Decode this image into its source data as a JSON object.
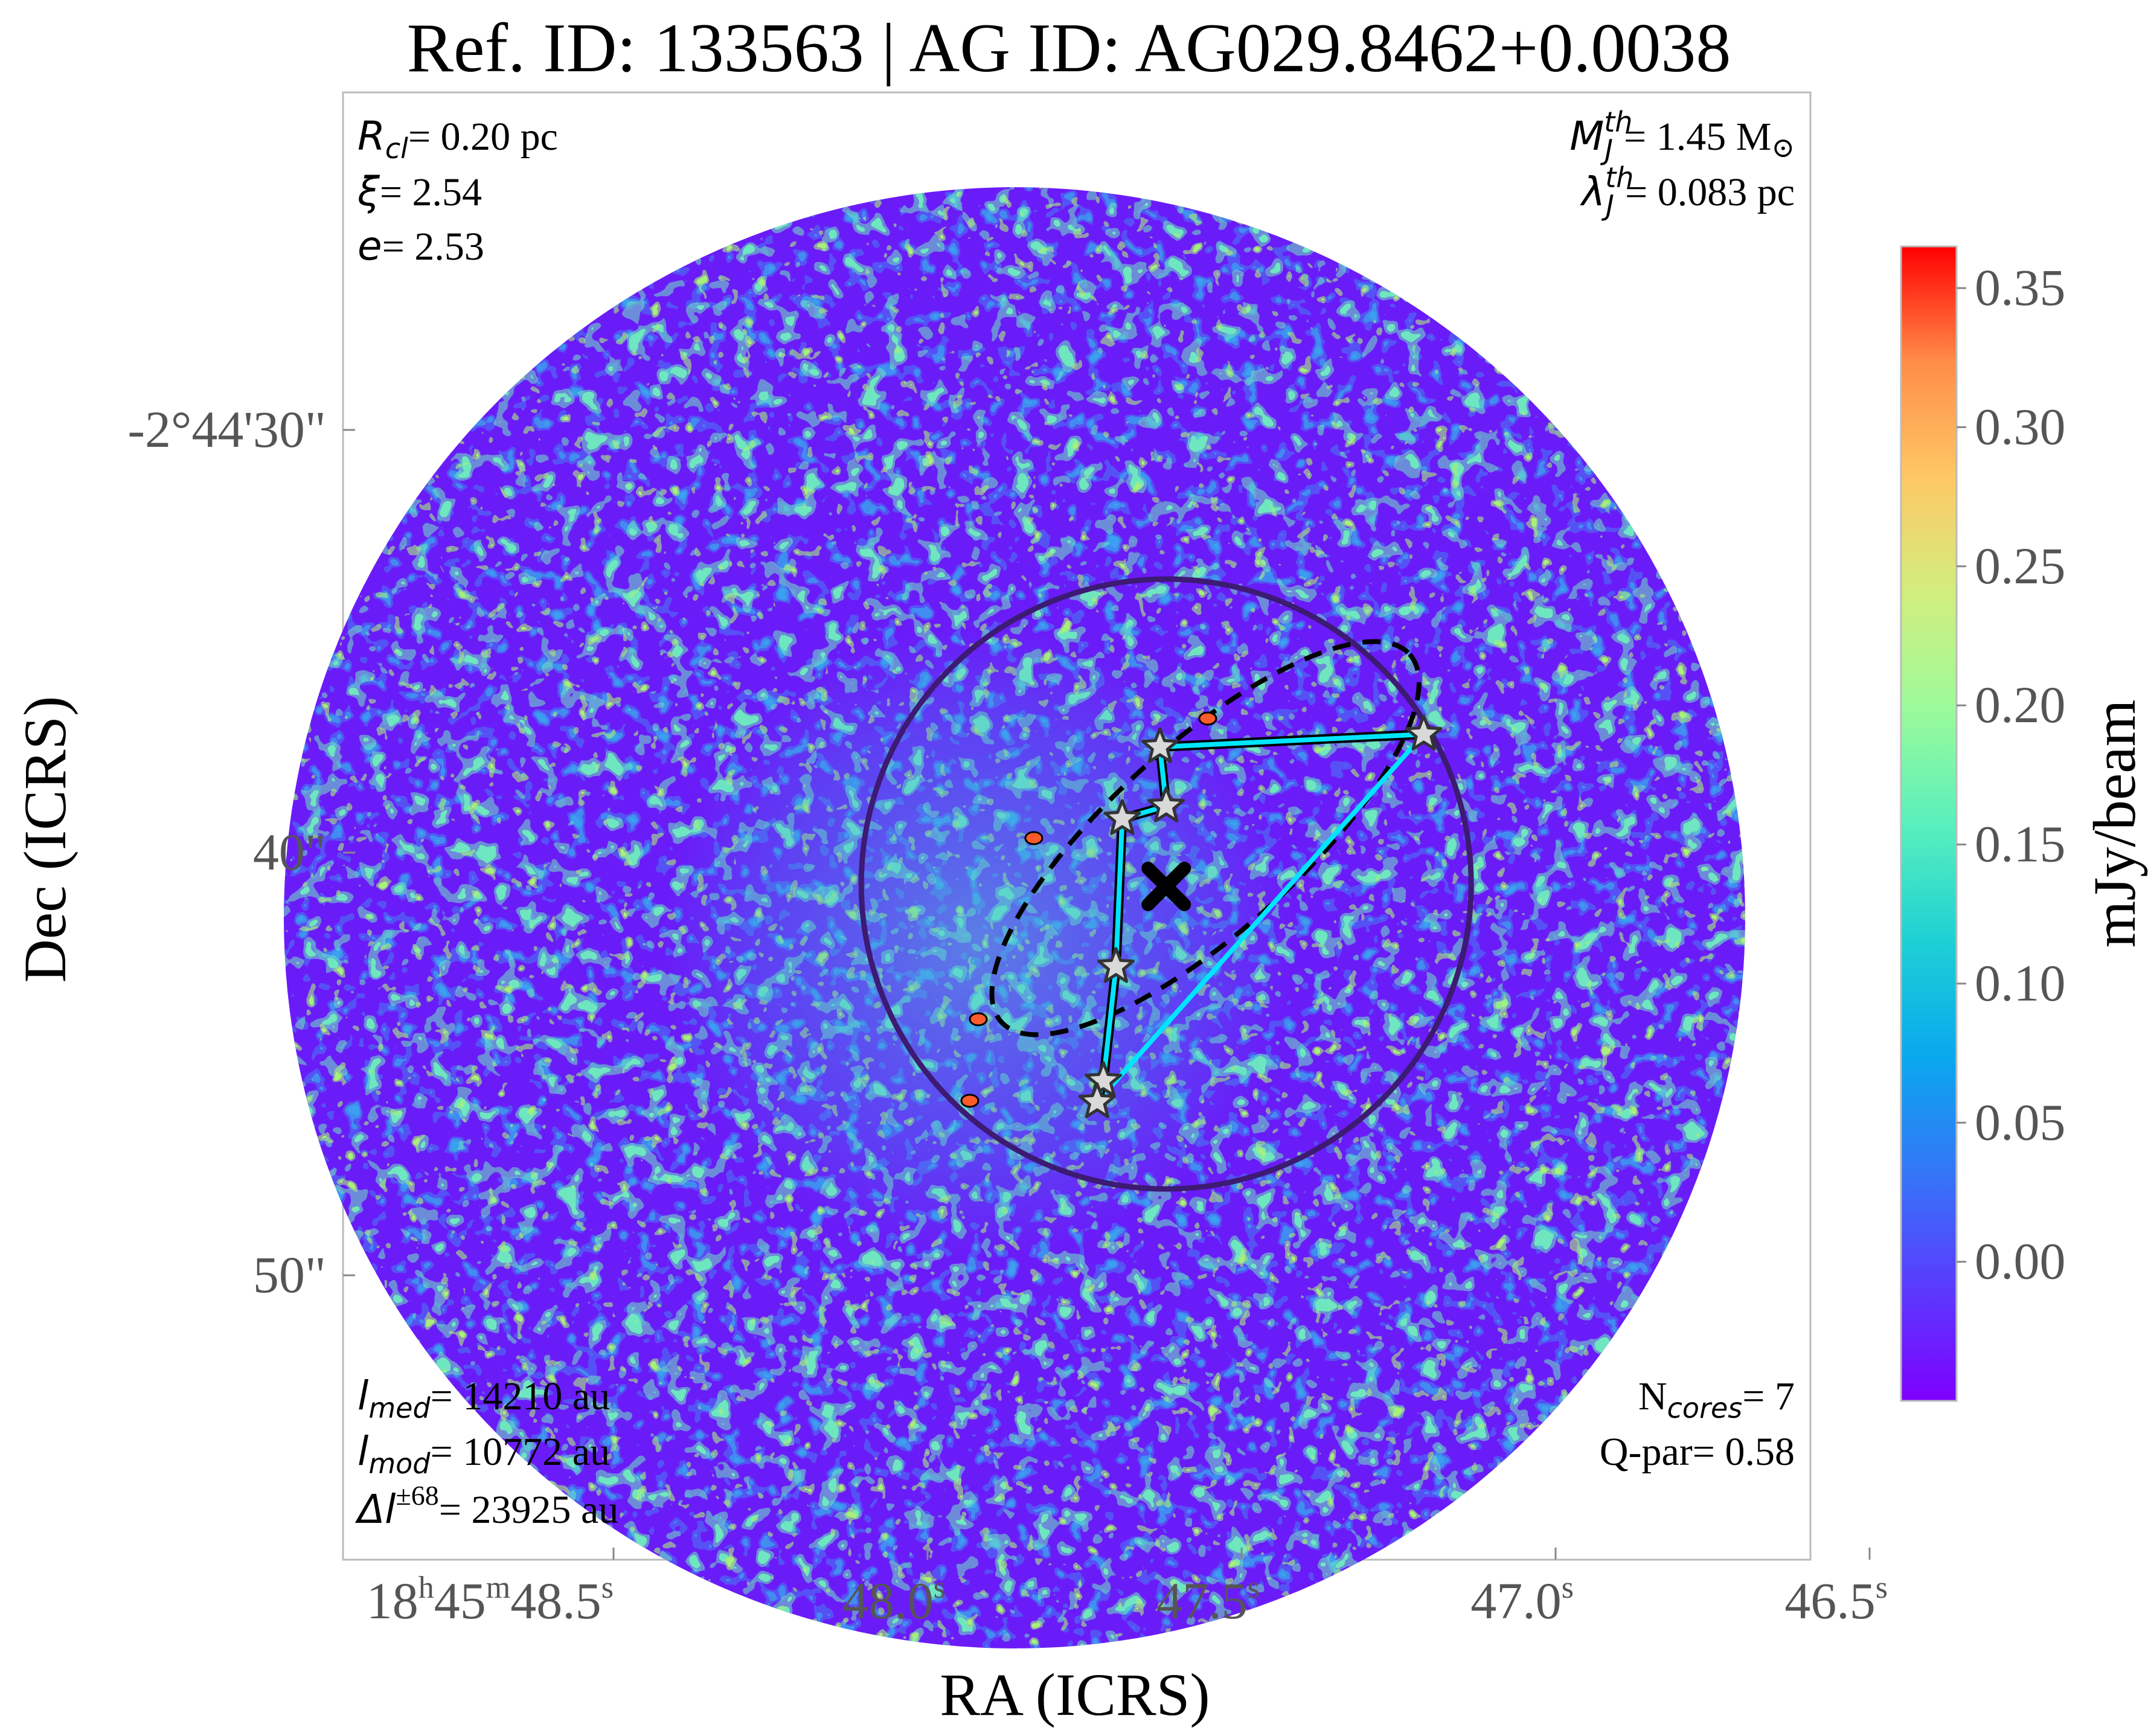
{
  "title": "Ref. ID: 133563 | AG ID: AG029.8462+0.0038",
  "xlabel": "RA (ICRS)",
  "ylabel": "Dec (ICRS)",
  "colorbar": {
    "label": "mJy/beam",
    "ticks": [
      "0.35",
      "0.30",
      "0.25",
      "0.20",
      "0.15",
      "0.10",
      "0.05",
      "0.00"
    ],
    "tick_values": [
      0.35,
      0.3,
      0.25,
      0.2,
      0.15,
      0.1,
      0.05,
      0.0
    ],
    "range": [
      -0.05,
      0.365
    ],
    "colormap": "rainbow"
  },
  "annotations": {
    "r_cl_val": "= 0.20 pc",
    "xi_val": "= 2.54",
    "e_val": "= 2.53",
    "mj_val": "= 1.45 M",
    "lj_val": "= 0.083 pc",
    "lmed_val": "= 14210 au",
    "lmod_val": "= 10772 au",
    "dl_val": "= 23925 au",
    "ncores_val": "= 7",
    "qpar_label": "Q-par= 0.58"
  },
  "chart_data": {
    "type": "image",
    "x_ticks": [
      "48.5",
      "48.0",
      "47.5",
      "47.0",
      "46.5"
    ],
    "x_tick_prefix": {
      "h": "18",
      "m": "45"
    },
    "x_tick_unit": "s",
    "y_ticks": [
      "-2°44'30\"",
      "40\"",
      "50\""
    ],
    "cores": [
      {
        "ra": "18h45m47.21s",
        "dec": "-2°44'37.2\""
      },
      {
        "ra": "18h45m47.63s",
        "dec": "-2°44'37.5\""
      },
      {
        "ra": "18h45m47.62s",
        "dec": "-2°44'38.9\""
      },
      {
        "ra": "18h45m47.69s",
        "dec": "-2°44'39.2\""
      },
      {
        "ra": "18h45m47.70s",
        "dec": "-2°44'42.7\""
      },
      {
        "ra": "18h45m47.72s",
        "dec": "-2°44'45.4\""
      },
      {
        "ra": "18h45m47.73s",
        "dec": "-2°44'45.9\""
      }
    ],
    "mst_edges": [
      [
        0,
        1
      ],
      [
        1,
        2
      ],
      [
        2,
        3
      ],
      [
        3,
        4
      ],
      [
        4,
        5
      ],
      [
        5,
        6
      ]
    ],
    "q_edges": [
      [
        0,
        6
      ]
    ],
    "clump_center": {
      "ra": "18h45m47.62s",
      "dec": "-2°44'40.8\""
    }
  }
}
